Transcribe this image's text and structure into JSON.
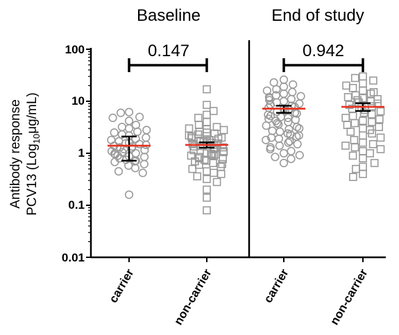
{
  "chart_data": {
    "type": "scatter",
    "panels": [
      {
        "title": "Baseline",
        "categories": [
          "carrier",
          "non-carrier"
        ],
        "comparison_p": "0.147",
        "groups": [
          {
            "name": "carrier",
            "marker": "circle",
            "mean": 1.4,
            "ci": [
              0.72,
              2.1
            ],
            "values": [
              6.2,
              6.0,
              5.0,
              4.8,
              4.2,
              3.5,
              3.2,
              3.0,
              2.8,
              2.6,
              2.5,
              2.3,
              2.2,
              2.0,
              1.9,
              1.8,
              1.7,
              1.6,
              1.55,
              1.5,
              1.45,
              1.4,
              1.35,
              1.3,
              1.25,
              1.2,
              1.15,
              1.1,
              1.05,
              1.0,
              0.98,
              0.95,
              0.9,
              0.88,
              0.85,
              0.8,
              0.75,
              0.72,
              0.7,
              0.68,
              0.62,
              0.58,
              0.52,
              0.45,
              0.42,
              0.16
            ]
          },
          {
            "name": "non-carrier",
            "marker": "square",
            "mean": 1.45,
            "ci": [
              1.28,
              1.62
            ],
            "values": [
              17.0,
              8.5,
              6.5,
              5.5,
              4.8,
              4.0,
              3.5,
              3.2,
              3.0,
              2.9,
              2.8,
              2.6,
              2.5,
              2.4,
              2.3,
              2.2,
              2.1,
              2.0,
              1.95,
              1.9,
              1.85,
              1.8,
              1.75,
              1.7,
              1.65,
              1.6,
              1.55,
              1.5,
              1.45,
              1.4,
              1.38,
              1.35,
              1.3,
              1.25,
              1.2,
              1.15,
              1.1,
              1.05,
              1.0,
              0.98,
              0.95,
              0.92,
              0.9,
              0.88,
              0.85,
              0.8,
              0.78,
              0.75,
              0.72,
              0.7,
              0.65,
              0.62,
              0.6,
              0.55,
              0.5,
              0.45,
              0.42,
              0.4,
              0.36,
              0.32,
              0.28,
              0.2,
              0.14,
              0.08
            ]
          }
        ]
      },
      {
        "title": "End of study",
        "categories": [
          "carrier",
          "non-carrier"
        ],
        "comparison_p": "0.942",
        "groups": [
          {
            "name": "carrier",
            "marker": "circle",
            "mean": 7.2,
            "ci": [
              6.0,
              8.2
            ],
            "values": [
              26.0,
              23.0,
              21.0,
              19.0,
              17.0,
              16.0,
              15.0,
              14.0,
              13.0,
              12.5,
              12.0,
              11.5,
              11.0,
              10.5,
              10.0,
              9.5,
              9.0,
              8.6,
              8.2,
              7.8,
              7.5,
              7.2,
              6.9,
              6.6,
              6.3,
              6.0,
              5.8,
              5.5,
              5.2,
              5.0,
              4.8,
              4.6,
              4.4,
              4.2,
              4.0,
              3.8,
              3.6,
              3.4,
              3.2,
              3.0,
              2.9,
              2.7,
              2.6,
              2.4,
              2.3,
              2.2,
              2.1,
              2.0,
              1.9,
              1.8,
              1.7,
              1.6,
              1.5,
              1.4,
              1.3,
              1.2,
              1.1,
              1.0,
              0.92,
              0.85,
              0.78,
              0.65
            ]
          },
          {
            "name": "non-carrier",
            "marker": "square",
            "mean": 7.8,
            "ci": [
              6.5,
              9.2
            ],
            "values": [
              30.0,
              28.0,
              25.0,
              22.0,
              20.0,
              18.0,
              16.0,
              15.0,
              14.0,
              13.0,
              12.0,
              11.5,
              11.0,
              10.5,
              10.0,
              9.5,
              9.0,
              8.5,
              8.0,
              7.6,
              7.2,
              6.8,
              6.4,
              6.0,
              5.6,
              5.2,
              4.8,
              4.5,
              4.2,
              4.0,
              3.8,
              3.5,
              3.2,
              3.0,
              2.8,
              2.6,
              2.4,
              2.2,
              2.0,
              1.8,
              1.6,
              1.5,
              1.4,
              1.3,
              1.2,
              1.1,
              1.0,
              0.9,
              0.8,
              0.65,
              0.55,
              0.5,
              0.4,
              0.35
            ]
          }
        ]
      }
    ],
    "ylabel": [
      "Antibody response",
      "PCV13 (Log",
      "10",
      "μg/mL)"
    ],
    "yscale": "log",
    "ylim": [
      0.01,
      100
    ],
    "yticks": [
      "0.01",
      "0.1",
      "1",
      "10",
      "100"
    ],
    "grid": false,
    "colors": {
      "mean": "#e8331f",
      "marker": "#9a9a9a",
      "axis": "#000000"
    }
  }
}
